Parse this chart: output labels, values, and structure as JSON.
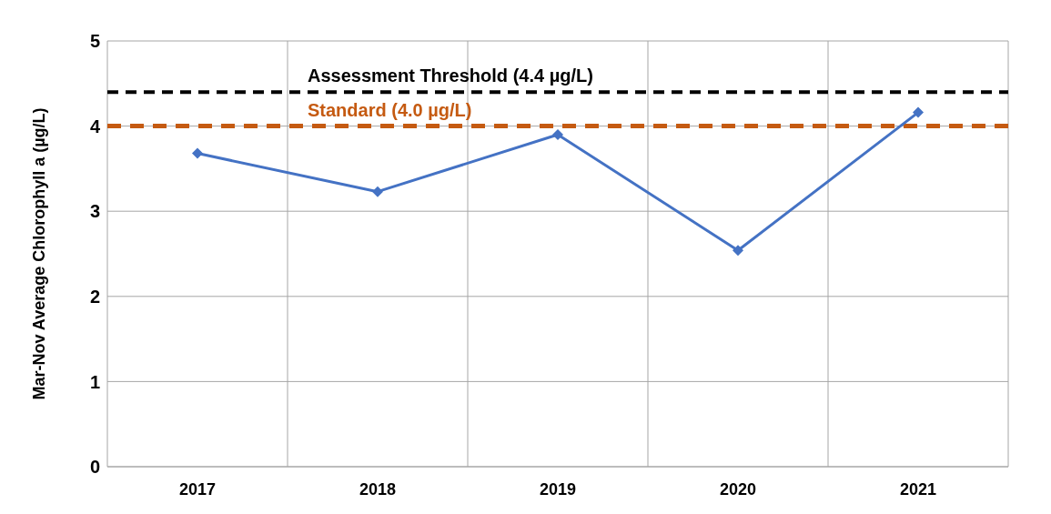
{
  "chart_data": {
    "type": "line",
    "ylabel": "Mar-Nov Average Chlorophyll a (µg/L)",
    "categories": [
      "2017",
      "2018",
      "2019",
      "2020",
      "2021"
    ],
    "series": [
      {
        "color": "#4472c4",
        "values": [
          3.68,
          3.23,
          3.9,
          2.54,
          4.16
        ]
      }
    ],
    "ylim": [
      0,
      5
    ],
    "yticks": [
      0,
      1,
      2,
      3,
      4,
      5
    ],
    "grid": true,
    "marker": "diamond",
    "line_style": "solid",
    "ref_lines": [
      {
        "axis": "y",
        "value": 4.4,
        "label": "Assessment Threshold (4.4 µg/L)",
        "color": "#000000",
        "line_style": "dashed"
      },
      {
        "axis": "y",
        "value": 4.0,
        "label": "Standard (4.0 µg/L)",
        "color": "#c55a11",
        "line_style": "dashed"
      }
    ]
  }
}
